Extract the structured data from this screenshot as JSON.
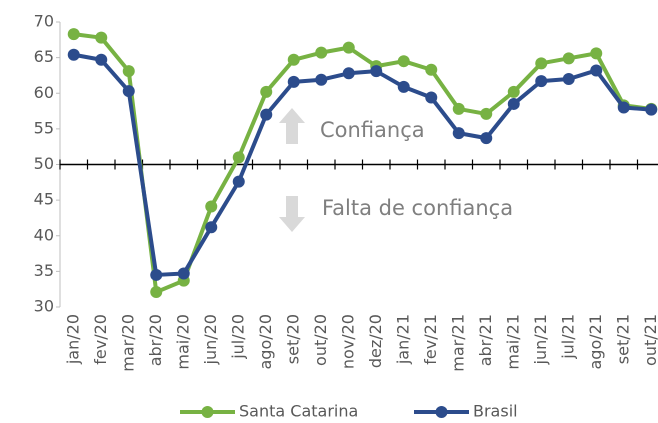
{
  "chart_data": {
    "type": "line",
    "categories": [
      "jan/20",
      "fev/20",
      "mar/20",
      "abr/20",
      "mai/20",
      "jun/20",
      "jul/20",
      "ago/20",
      "set/20",
      "out/20",
      "nov/20",
      "dez/20",
      "jan/21",
      "fev/21",
      "mar/21",
      "abr/21",
      "mai/21",
      "jun/21",
      "jul/21",
      "ago/21",
      "set/21",
      "out/21"
    ],
    "series": [
      {
        "name": "Santa Catarina",
        "color": "#77b243",
        "values": [
          68.3,
          67.8,
          63.1,
          32.1,
          33.7,
          44.1,
          51.0,
          60.2,
          64.7,
          65.7,
          66.4,
          63.8,
          64.5,
          63.3,
          57.8,
          57.1,
          60.2,
          64.2,
          64.9,
          65.6,
          58.3,
          57.8
        ]
      },
      {
        "name": "Brasil",
        "color": "#2c4c8c",
        "values": [
          65.4,
          64.7,
          60.3,
          34.5,
          34.7,
          41.2,
          47.6,
          57.0,
          61.6,
          61.9,
          62.8,
          63.1,
          60.9,
          59.4,
          54.4,
          53.7,
          58.5,
          61.7,
          62.0,
          63.2,
          58.0,
          57.7
        ]
      }
    ],
    "ylim": [
      30,
      70
    ],
    "yticks": [
      30,
      35,
      40,
      45,
      50,
      55,
      60,
      65,
      70
    ],
    "x_axis_crossing": 50,
    "annotations": [
      "Confiança",
      "Falta de confiança"
    ],
    "legend": "bottom"
  }
}
